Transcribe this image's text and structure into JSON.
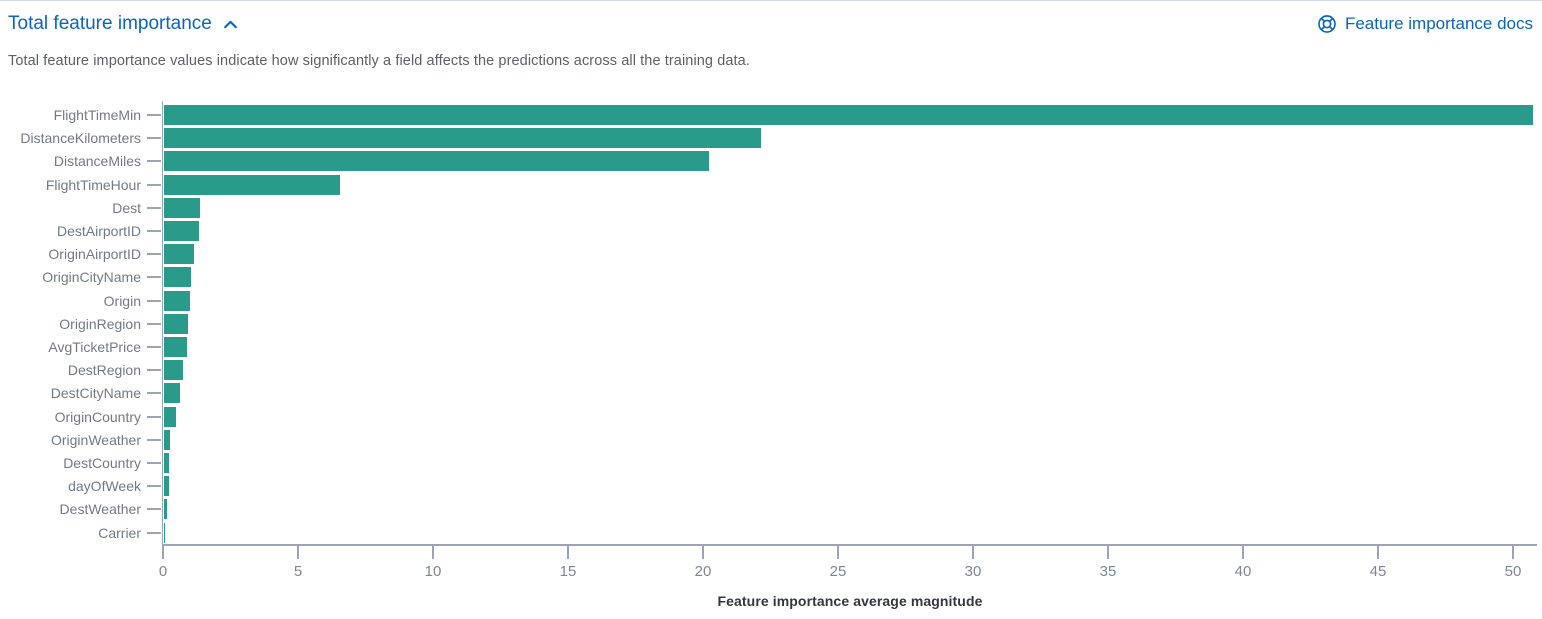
{
  "header": {
    "title": "Total feature importance",
    "docs_label": "Feature importance docs",
    "link_color": "#0b64c2"
  },
  "description": "Total feature importance values indicate how significantly a field affects the predictions across all the training data.",
  "chart_data": {
    "type": "bar",
    "orientation": "horizontal",
    "title": "",
    "xlabel": "Feature importance average magnitude",
    "ylabel": "",
    "categories": [
      "FlightTimeMin",
      "DistanceKilometers",
      "DistanceMiles",
      "FlightTimeHour",
      "Dest",
      "DestAirportID",
      "OriginAirportID",
      "OriginCityName",
      "Origin",
      "OriginRegion",
      "AvgTicketPrice",
      "DestRegion",
      "DestCityName",
      "OriginCountry",
      "OriginWeather",
      "DestCountry",
      "dayOfWeek",
      "DestWeather",
      "Carrier"
    ],
    "values": [
      50.7,
      22.1,
      20.2,
      6.5,
      1.35,
      1.3,
      1.1,
      1.0,
      0.95,
      0.9,
      0.85,
      0.72,
      0.6,
      0.45,
      0.22,
      0.18,
      0.17,
      0.12,
      0.05
    ],
    "x_ticks": [
      0,
      5,
      10,
      15,
      20,
      25,
      30,
      35,
      40,
      45,
      50
    ],
    "xlim": [
      0,
      50.9
    ],
    "bar_color": "#2a9a8b",
    "axis_color": "#9aa5b8",
    "grid": false,
    "legend": "none"
  }
}
